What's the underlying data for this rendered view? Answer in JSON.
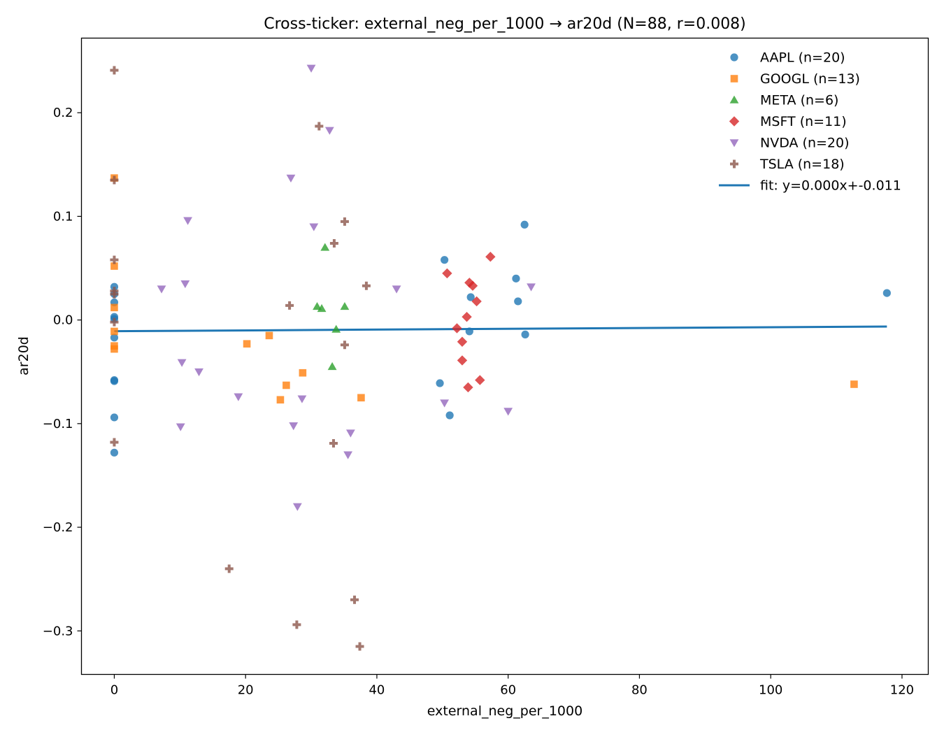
{
  "chart_data": {
    "type": "scatter",
    "title": "Cross-ticker: external_neg_per_1000 → ar20d   (N=88, r=0.008)",
    "xlabel": "external_neg_per_1000",
    "ylabel": "ar20d",
    "xlim": [
      -5,
      124
    ],
    "ylim": [
      -0.342,
      0.272
    ],
    "xticks": [
      0,
      20,
      40,
      60,
      80,
      100,
      120
    ],
    "xtick_labels": [
      "0",
      "20",
      "40",
      "60",
      "80",
      "100",
      "120"
    ],
    "yticks": [
      -0.3,
      -0.2,
      -0.1,
      0.0,
      0.1,
      0.2
    ],
    "ytick_labels": [
      "−0.3",
      "−0.2",
      "−0.1",
      "0.0",
      "0.1",
      "0.2"
    ],
    "grid": false,
    "legend_position": "top-right",
    "series": [
      {
        "name": "AAPL (n=20)",
        "marker": "circle",
        "color": "#1f77b4",
        "points": [
          [
            0,
            0.032
          ],
          [
            0,
            0.025
          ],
          [
            0,
            0.017
          ],
          [
            0,
            0.003
          ],
          [
            0,
            0.001
          ],
          [
            0,
            -0.017
          ],
          [
            0,
            -0.058
          ],
          [
            0,
            -0.059
          ],
          [
            0,
            -0.094
          ],
          [
            0,
            -0.128
          ],
          [
            50.3,
            0.058
          ],
          [
            49.6,
            -0.061
          ],
          [
            51.1,
            -0.092
          ],
          [
            54.3,
            0.022
          ],
          [
            54.1,
            -0.011
          ],
          [
            62.5,
            0.092
          ],
          [
            61.2,
            0.04
          ],
          [
            61.5,
            0.018
          ],
          [
            62.6,
            -0.014
          ],
          [
            117.7,
            0.026
          ]
        ]
      },
      {
        "name": "GOOGL (n=13)",
        "marker": "square",
        "color": "#ff7f0e",
        "points": [
          [
            0,
            0.137
          ],
          [
            0,
            0.052
          ],
          [
            0,
            0.012
          ],
          [
            0,
            -0.011
          ],
          [
            0,
            -0.028
          ],
          [
            20.2,
            -0.023
          ],
          [
            23.6,
            -0.015
          ],
          [
            26.2,
            -0.063
          ],
          [
            25.3,
            -0.077
          ],
          [
            28.7,
            -0.051
          ],
          [
            37.6,
            -0.075
          ],
          [
            112.7,
            -0.062
          ],
          [
            0,
            -0.025
          ]
        ]
      },
      {
        "name": "META (n=6)",
        "marker": "triangle-up",
        "color": "#2ca02c",
        "points": [
          [
            32.1,
            0.07
          ],
          [
            30.9,
            0.013
          ],
          [
            31.6,
            0.011
          ],
          [
            35.1,
            0.013
          ],
          [
            33.8,
            -0.009
          ],
          [
            33.2,
            -0.045
          ]
        ]
      },
      {
        "name": "MSFT (n=11)",
        "marker": "diamond",
        "color": "#d62728",
        "points": [
          [
            57.3,
            0.061
          ],
          [
            50.7,
            0.045
          ],
          [
            54.1,
            0.036
          ],
          [
            54.6,
            0.033
          ],
          [
            55.2,
            0.018
          ],
          [
            53.7,
            0.003
          ],
          [
            52.2,
            -0.008
          ],
          [
            53.0,
            -0.021
          ],
          [
            53.0,
            -0.039
          ],
          [
            53.9,
            -0.065
          ],
          [
            55.7,
            -0.058
          ]
        ]
      },
      {
        "name": "NVDA (n=20)",
        "marker": "triangle-down",
        "color": "#9467bd",
        "points": [
          [
            30.0,
            0.243
          ],
          [
            32.8,
            0.183
          ],
          [
            26.9,
            0.137
          ],
          [
            11.2,
            0.096
          ],
          [
            30.4,
            0.09
          ],
          [
            7.2,
            0.03
          ],
          [
            10.8,
            0.035
          ],
          [
            43.0,
            0.03
          ],
          [
            63.5,
            0.032
          ],
          [
            10.3,
            -0.041
          ],
          [
            12.9,
            -0.05
          ],
          [
            18.9,
            -0.074
          ],
          [
            28.6,
            -0.076
          ],
          [
            50.3,
            -0.08
          ],
          [
            60.0,
            -0.088
          ],
          [
            27.3,
            -0.102
          ],
          [
            10.1,
            -0.103
          ],
          [
            36.0,
            -0.109
          ],
          [
            35.6,
            -0.13
          ],
          [
            27.9,
            -0.18
          ]
        ]
      },
      {
        "name": "TSLA (n=18)",
        "marker": "plus",
        "color": "#8c564b",
        "points": [
          [
            0,
            0.241
          ],
          [
            0,
            0.135
          ],
          [
            0,
            0.058
          ],
          [
            0,
            0.028
          ],
          [
            0,
            0.025
          ],
          [
            0,
            -0.002
          ],
          [
            0,
            -0.118
          ],
          [
            31.2,
            0.187
          ],
          [
            35.1,
            0.095
          ],
          [
            33.5,
            0.074
          ],
          [
            38.4,
            0.033
          ],
          [
            26.7,
            0.014
          ],
          [
            35.1,
            -0.024
          ],
          [
            33.4,
            -0.119
          ],
          [
            17.5,
            -0.24
          ],
          [
            36.6,
            -0.27
          ],
          [
            27.8,
            -0.294
          ],
          [
            37.4,
            -0.315
          ]
        ]
      }
    ],
    "fit": {
      "name": "fit: y=0.000x+-0.011",
      "color": "#1f77b4",
      "x": [
        0,
        117.7
      ],
      "y": [
        -0.0108,
        -0.0063
      ]
    }
  }
}
